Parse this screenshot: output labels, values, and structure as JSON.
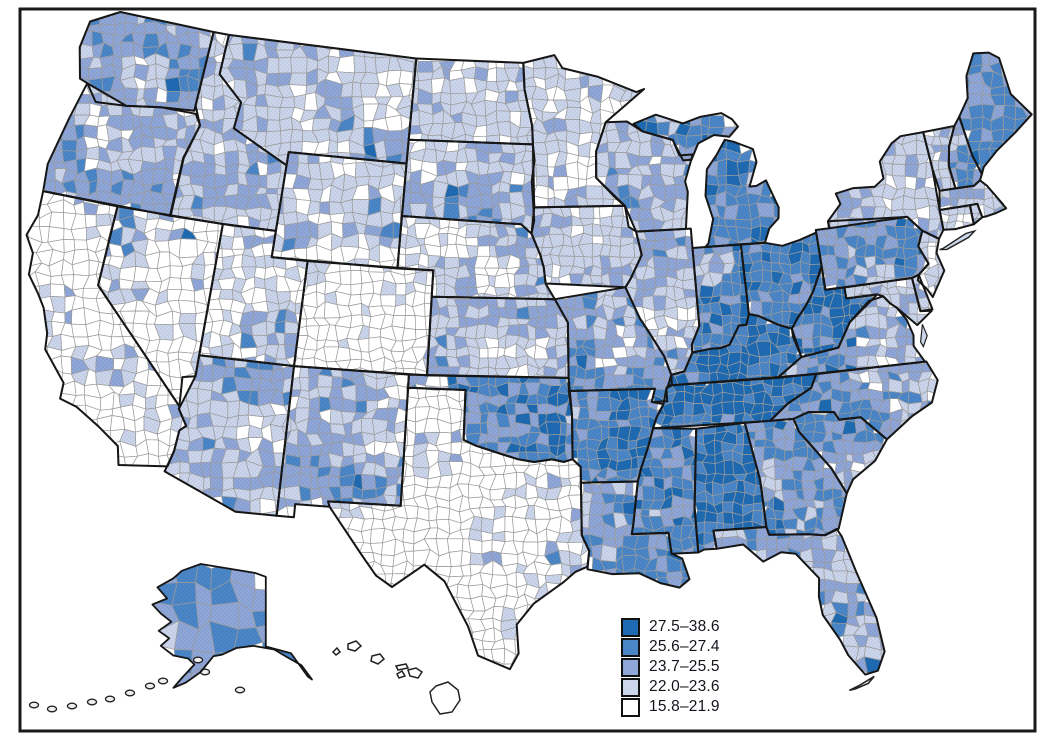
{
  "legend": {
    "items": [
      {
        "range": "27.5–38.6",
        "color": "#1F6BB3"
      },
      {
        "range": "25.6–27.4",
        "color": "#4A86C8"
      },
      {
        "range": "23.7–25.5",
        "color": "#8FA6D9"
      },
      {
        "range": "22.0–23.6",
        "color": "#CBD5EC"
      },
      {
        "range": "15.8–21.9",
        "color": "#FFFFFF"
      }
    ]
  },
  "map_data": {
    "type": "choropleth",
    "region": "United States, county-level, Albers projection with Alaska and Hawaii insets",
    "value_range_shown": "15.8–38.6",
    "class_breaks": [
      "27.5–38.6",
      "25.6–27.4",
      "23.7–25.5",
      "22.0–23.6",
      "15.8–21.9"
    ],
    "colors": {
      "class_fills": [
        "#1F6BB3",
        "#4A86C8",
        "#8FA6D9",
        "#CBD5EC",
        "#FFFFFF"
      ],
      "county_border": "#9B9B9B",
      "state_border": "#161616",
      "frame": "#1a1a1a",
      "background": "#FFFFFF"
    },
    "states": {
      "WA": {
        "class_mix": [
          8,
          18,
          38,
          26,
          10
        ]
      },
      "OR": {
        "class_mix": [
          5,
          15,
          40,
          28,
          12
        ]
      },
      "CA": {
        "class_mix": [
          1,
          3,
          8,
          18,
          70
        ]
      },
      "NV": {
        "class_mix": [
          2,
          4,
          10,
          14,
          70
        ]
      },
      "ID": {
        "class_mix": [
          4,
          10,
          28,
          36,
          22
        ]
      },
      "MT": {
        "class_mix": [
          4,
          10,
          24,
          34,
          28
        ]
      },
      "WY": {
        "class_mix": [
          2,
          5,
          13,
          30,
          50
        ]
      },
      "UT": {
        "class_mix": [
          3,
          6,
          14,
          25,
          52
        ]
      },
      "CO": {
        "class_mix": [
          1,
          3,
          7,
          19,
          70
        ]
      },
      "AZ": {
        "class_mix": [
          6,
          12,
          26,
          34,
          22
        ]
      },
      "NM": {
        "class_mix": [
          8,
          15,
          30,
          27,
          20
        ]
      },
      "ND": {
        "class_mix": [
          5,
          8,
          22,
          40,
          25
        ]
      },
      "SD": {
        "class_mix": [
          5,
          10,
          26,
          34,
          25
        ]
      },
      "NE": {
        "class_mix": [
          2,
          8,
          20,
          35,
          35
        ]
      },
      "KS": {
        "class_mix": [
          3,
          10,
          26,
          36,
          25
        ]
      },
      "OK": {
        "class_mix": [
          25,
          26,
          25,
          15,
          9
        ]
      },
      "TX": {
        "class_mix": [
          1,
          3,
          8,
          18,
          70
        ]
      },
      "MN": {
        "class_mix": [
          2,
          5,
          14,
          32,
          47
        ]
      },
      "IA": {
        "class_mix": [
          2,
          6,
          24,
          46,
          22
        ]
      },
      "MO": {
        "class_mix": [
          16,
          26,
          30,
          19,
          9
        ]
      },
      "AR": {
        "class_mix": [
          36,
          30,
          20,
          10,
          4
        ]
      },
      "LA": {
        "class_mix": [
          30,
          30,
          25,
          11,
          4
        ]
      },
      "WI": {
        "class_mix": [
          5,
          12,
          28,
          35,
          20
        ]
      },
      "IL": {
        "class_mix": [
          6,
          13,
          30,
          36,
          15
        ]
      },
      "MS": {
        "class_mix": [
          42,
          28,
          19,
          8,
          3
        ]
      },
      "MI": {
        "class_mix": [
          48,
          30,
          13,
          6,
          3
        ]
      },
      "IN": {
        "class_mix": [
          26,
          32,
          27,
          11,
          4
        ]
      },
      "OH": {
        "class_mix": [
          30,
          32,
          24,
          10,
          4
        ]
      },
      "KY": {
        "class_mix": [
          58,
          25,
          11,
          4,
          2
        ]
      },
      "TN": {
        "class_mix": [
          52,
          27,
          14,
          5,
          2
        ]
      },
      "WV": {
        "class_mix": [
          56,
          25,
          12,
          5,
          2
        ]
      },
      "AL": {
        "class_mix": [
          46,
          30,
          15,
          6,
          3
        ]
      },
      "GA": {
        "class_mix": [
          22,
          28,
          27,
          15,
          8
        ]
      },
      "FL": {
        "class_mix": [
          8,
          16,
          28,
          30,
          18
        ]
      },
      "SC": {
        "class_mix": [
          15,
          30,
          32,
          16,
          7
        ]
      },
      "NC": {
        "class_mix": [
          20,
          30,
          30,
          14,
          6
        ]
      },
      "VA": {
        "class_mix": [
          12,
          18,
          28,
          27,
          15
        ]
      },
      "PA": {
        "class_mix": [
          22,
          32,
          28,
          13,
          5
        ]
      },
      "NY": {
        "class_mix": [
          5,
          12,
          26,
          37,
          20
        ]
      },
      "NJ": {
        "class_mix": [
          0,
          3,
          10,
          35,
          52
        ]
      },
      "MD": {
        "class_mix": [
          8,
          12,
          22,
          33,
          25
        ]
      },
      "DE": {
        "class_mix": [
          5,
          15,
          30,
          30,
          20
        ]
      },
      "ME": {
        "class_mix": [
          25,
          38,
          22,
          11,
          4
        ]
      },
      "NH": {
        "class_mix": [
          10,
          25,
          32,
          25,
          8
        ]
      },
      "VT": {
        "class_mix": [
          5,
          18,
          30,
          32,
          15
        ]
      },
      "MA": {
        "class_mix": [
          3,
          10,
          22,
          40,
          25
        ]
      },
      "CT": {
        "class_mix": [
          0,
          5,
          15,
          45,
          35
        ]
      },
      "RI": {
        "class_mix": [
          0,
          5,
          15,
          45,
          35
        ]
      },
      "AK": {
        "class_mix": [
          12,
          35,
          25,
          18,
          10
        ]
      },
      "HI": {
        "class_mix": [
          0,
          0,
          5,
          15,
          80
        ]
      }
    }
  }
}
